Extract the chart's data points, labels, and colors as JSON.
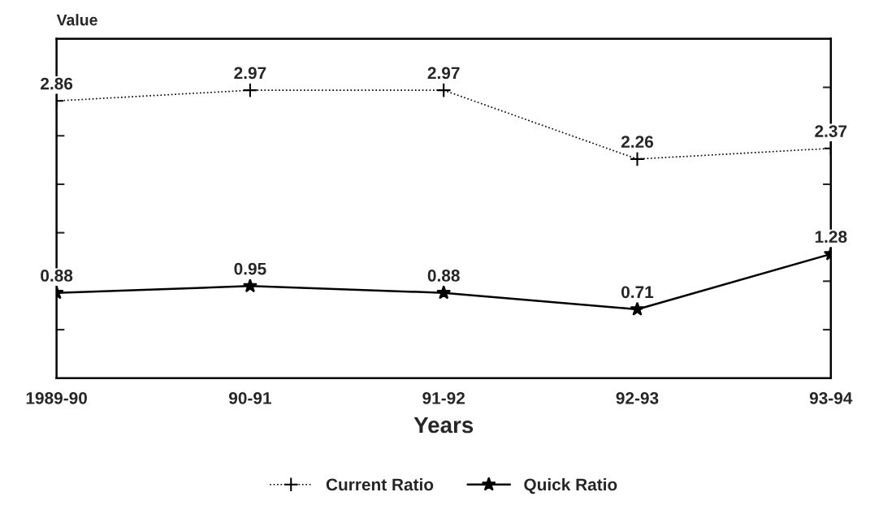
{
  "chart_data": {
    "type": "line",
    "ylabel": "Value",
    "xlabel": "Years",
    "categories": [
      "1989-90",
      "90-91",
      "91-92",
      "92-93",
      "93-94"
    ],
    "series": [
      {
        "name": "Current Ratio",
        "color": "#000000",
        "values": [
          2.86,
          2.97,
          2.97,
          2.26,
          2.37
        ],
        "marker": "cross",
        "line_style": "dotted"
      },
      {
        "name": "Quick Ratio",
        "color": "#000000",
        "values": [
          0.88,
          0.95,
          0.88,
          0.71,
          1.28
        ],
        "marker": "star",
        "line_style": "solid"
      }
    ],
    "ylim": [
      0,
      3.5
    ],
    "yticks": [
      {
        "value": 0.5,
        "label": null
      },
      {
        "value": 1,
        "label": null
      },
      {
        "value": 1.5,
        "label": null
      },
      {
        "value": 2,
        "label": null
      },
      {
        "value": 2.5,
        "label": null
      },
      {
        "value": 3,
        "label": null
      }
    ],
    "data_labels": true,
    "legend": "bottom",
    "grid": false
  }
}
